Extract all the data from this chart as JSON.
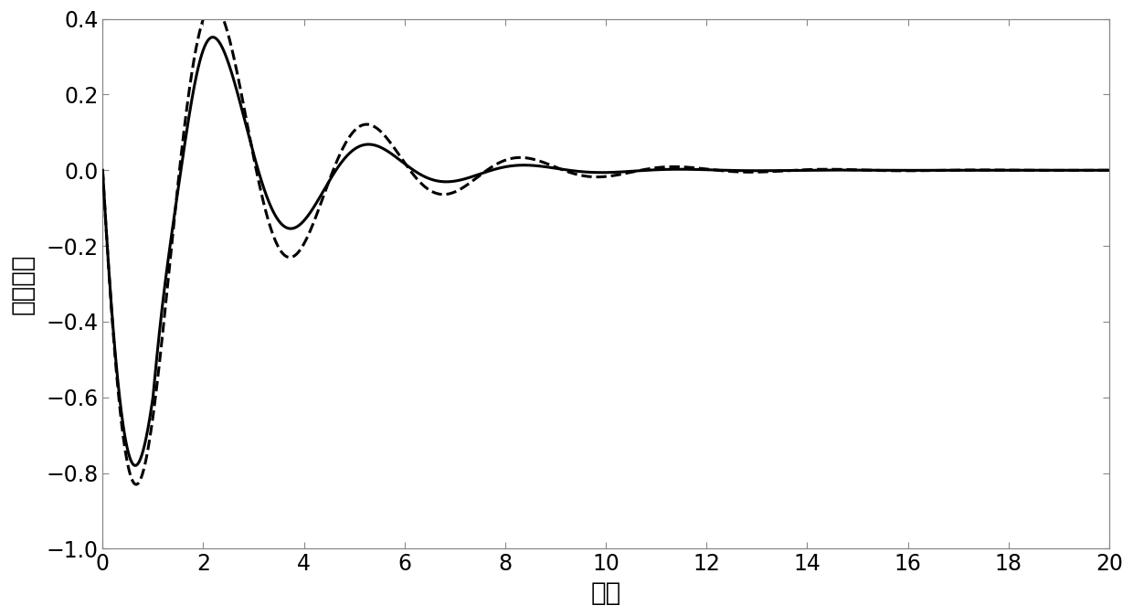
{
  "title": "",
  "xlabel": "时间",
  "ylabel": "负载摆角",
  "xlim": [
    0,
    20
  ],
  "ylim": [
    -1,
    0.4
  ],
  "xticks": [
    0,
    2,
    4,
    6,
    8,
    10,
    12,
    14,
    16,
    18,
    20
  ],
  "yticks": [
    -1,
    -0.8,
    -0.6,
    -0.4,
    -0.2,
    0,
    0.2,
    0.4
  ],
  "background_color": "#ffffff",
  "line_color": "#000000",
  "solid_lw": 2.2,
  "dashed_lw": 2.2,
  "xlabel_fontsize": 20,
  "ylabel_fontsize": 20,
  "tick_fontsize": 17,
  "spine_color": "#888888",
  "spine_lw": 0.9
}
